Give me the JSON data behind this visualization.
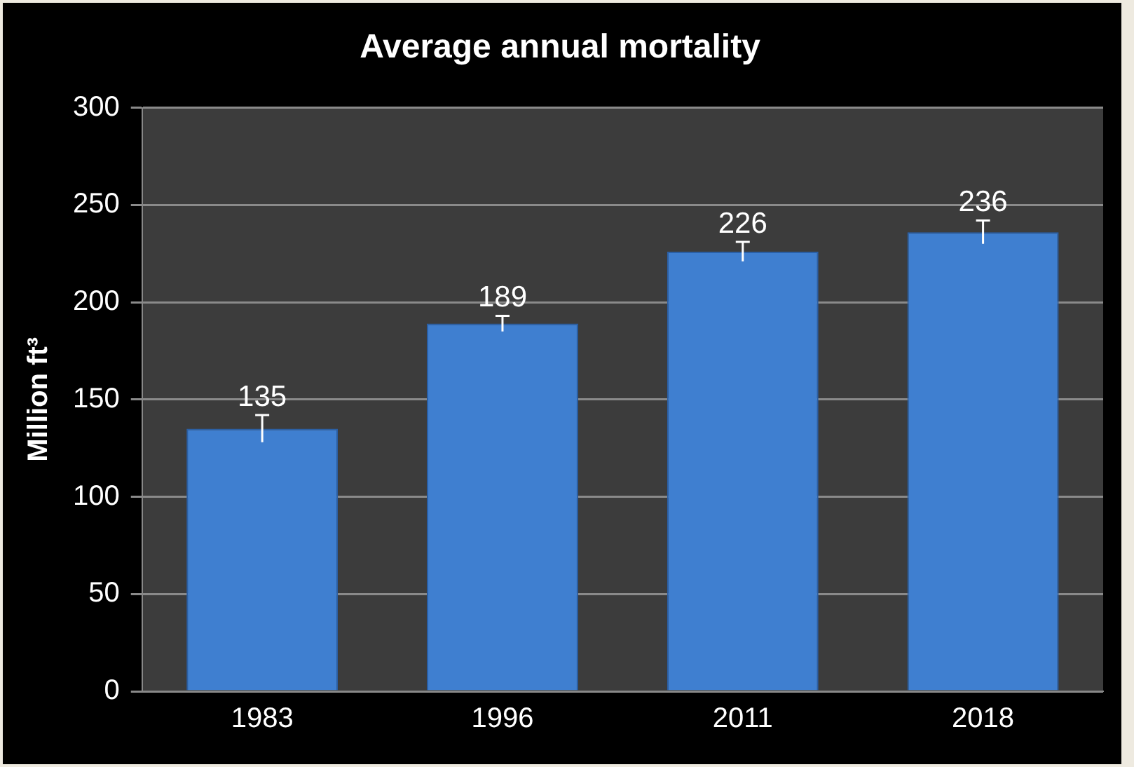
{
  "chart_data": {
    "type": "bar",
    "title": "Average annual mortality",
    "ylabel": "Million ft³",
    "categories": [
      "1983",
      "1996",
      "2011",
      "2018"
    ],
    "values": [
      135,
      189,
      226,
      236
    ],
    "color": "#3f7fd0",
    "errors": [
      7,
      4,
      5,
      6
    ],
    "ylim": [
      0,
      300
    ],
    "yticks": [
      0,
      50,
      100,
      150,
      200,
      250,
      300
    ],
    "grid": "y",
    "data_labels": true,
    "legend": false
  }
}
